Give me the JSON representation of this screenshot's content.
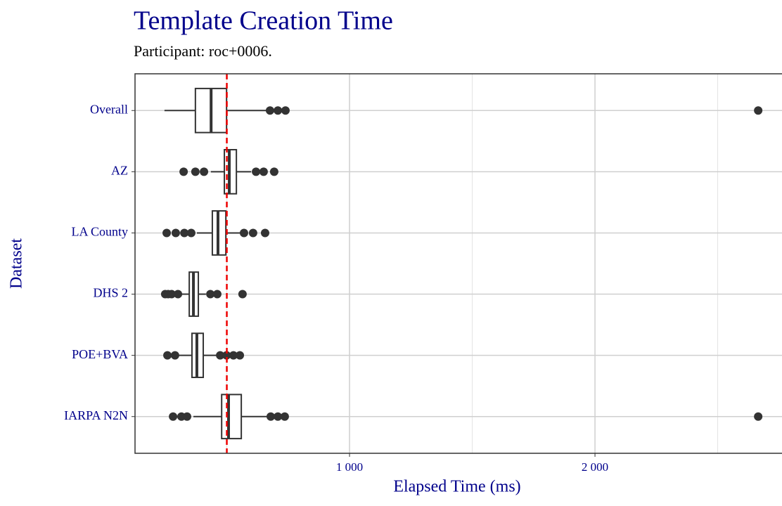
{
  "chart_data": {
    "type": "boxplot",
    "title": "Template Creation Time",
    "subtitle": "Participant: roc+0006.",
    "x_label": "Elapsed Time (ms)",
    "y_label": "Dataset",
    "categories": [
      "Overall",
      "AZ",
      "LA County",
      "DHS 2",
      "POE+BVA",
      "IARPA N2N"
    ],
    "boxes": [
      {
        "min": 246,
        "q1": 372,
        "median": 436,
        "q3": 499,
        "max": 665,
        "outliers": [
          676,
          708,
          739,
          2665
        ]
      },
      {
        "min": 435,
        "q1": 490,
        "median": 510,
        "q3": 539,
        "max": 599,
        "outliers": [
          324,
          372,
          407,
          619,
          650,
          693
        ]
      },
      {
        "min": 378,
        "q1": 441,
        "median": 464,
        "q3": 496,
        "max": 556,
        "outliers": [
          255,
          292,
          327,
          355,
          570,
          607,
          656
        ]
      },
      {
        "min": 312,
        "q1": 347,
        "median": 364,
        "q3": 384,
        "max": 415,
        "outliers": [
          249,
          261,
          275,
          301,
          433,
          461,
          564
        ]
      },
      {
        "min": 292,
        "q1": 358,
        "median": 378,
        "q3": 404,
        "max": 464,
        "outliers": [
          258,
          289,
          473,
          499,
          527,
          553
        ]
      },
      {
        "min": 364,
        "q1": 479,
        "median": 507,
        "q3": 559,
        "max": 665,
        "outliers": [
          281,
          315,
          338,
          679,
          708,
          736,
          2665
        ]
      }
    ],
    "reference_line": 500,
    "reference_color": "#ee0000",
    "box_color": "#333333",
    "xlim": [
      126,
      2762
    ],
    "xticks": [
      {
        "value": 1000,
        "label": "1 000"
      },
      {
        "value": 2000,
        "label": "2 000"
      }
    ],
    "minor_xticks": [
      500,
      1500,
      2500
    ],
    "grid": true
  }
}
